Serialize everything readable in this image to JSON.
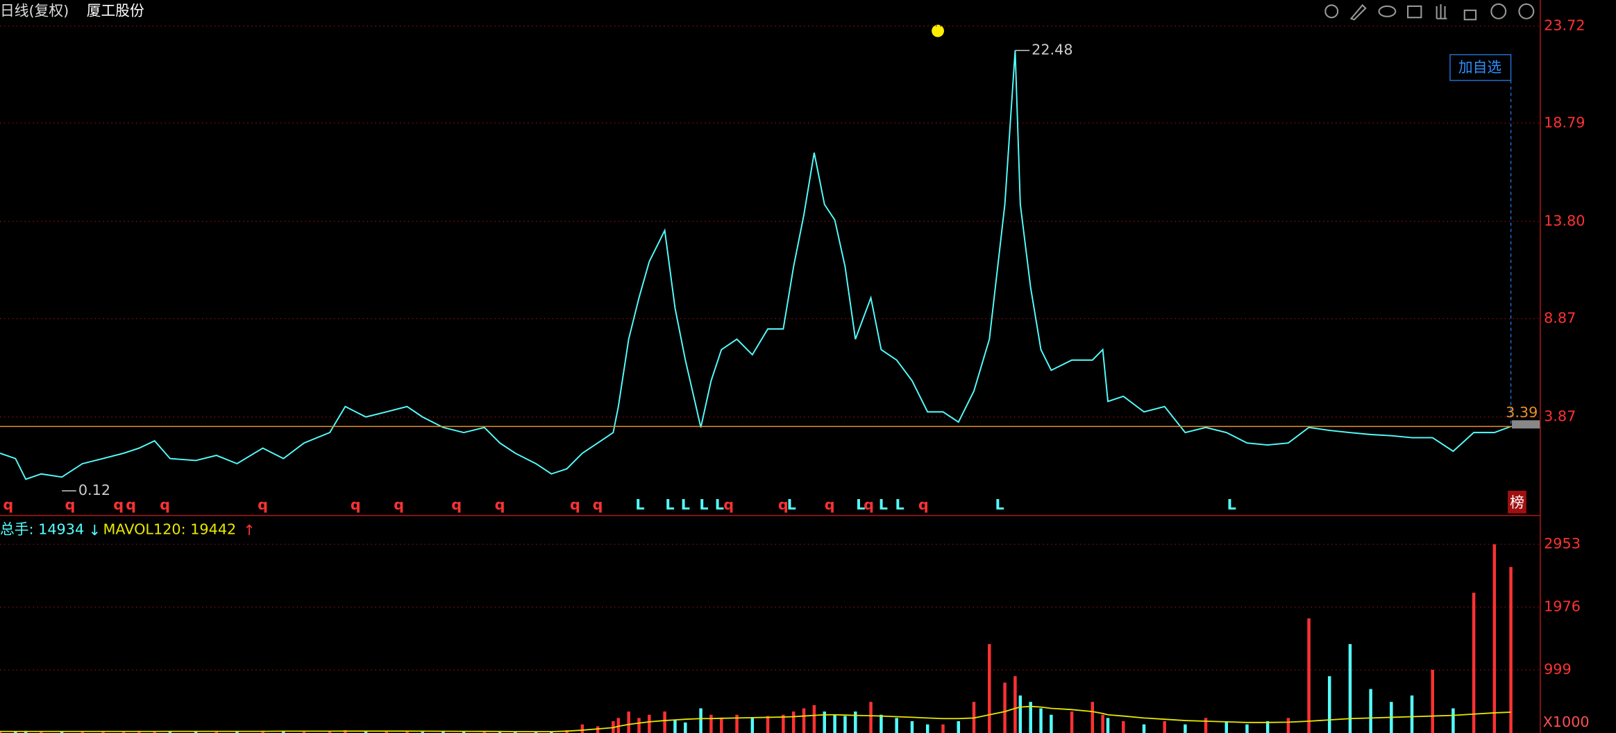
{
  "header": {
    "period": "日线(复权)",
    "stock": "厦工股份",
    "volume_label": "总手: 14934",
    "volume_arrow": "↓",
    "mavol_label": "MAVOL120: 19442",
    "mavol_arrow": "↑",
    "add_button": "加自选",
    "rank_badge": "榜",
    "unit": "X1000"
  },
  "chart_data": [
    {
      "type": "line",
      "name": "price",
      "x": [
        0,
        15,
        25,
        40,
        60,
        80,
        100,
        120,
        135,
        150,
        165,
        190,
        210,
        230,
        255,
        275,
        295,
        320,
        335,
        355,
        375,
        395,
        410,
        430,
        450,
        470,
        485,
        500,
        520,
        535,
        550,
        565,
        580,
        595,
        600,
        610,
        620,
        630,
        645,
        655,
        665,
        680,
        690,
        700,
        715,
        730,
        745,
        760,
        770,
        780,
        790,
        800,
        810,
        820,
        830,
        845,
        855,
        870,
        885,
        900,
        915,
        930,
        945,
        960,
        975,
        985,
        990,
        1000,
        1010,
        1020,
        1040,
        1060,
        1070,
        1075,
        1090,
        1110,
        1130,
        1150,
        1170,
        1190,
        1210,
        1230,
        1250,
        1270,
        1290,
        1310,
        1330,
        1350,
        1370,
        1390,
        1410,
        1430,
        1450,
        1466
      ],
      "values": [
        2.03,
        1.76,
        0.71,
        0.98,
        0.82,
        1.5,
        1.76,
        2.03,
        2.29,
        2.66,
        1.76,
        1.66,
        1.92,
        1.5,
        2.29,
        1.76,
        2.55,
        3.08,
        4.4,
        3.87,
        4.13,
        4.4,
        3.87,
        3.34,
        3.08,
        3.34,
        2.55,
        2.03,
        1.5,
        0.98,
        1.24,
        2.03,
        2.55,
        3.08,
        4.4,
        7.82,
        9.92,
        11.76,
        13.34,
        9.4,
        6.76,
        3.34,
        5.71,
        7.29,
        7.82,
        7.03,
        8.34,
        8.34,
        11.5,
        14.13,
        17.29,
        14.66,
        13.87,
        11.5,
        7.82,
        9.92,
        7.29,
        6.76,
        5.71,
        4.13,
        4.13,
        3.61,
        5.19,
        7.82,
        14.66,
        22.48,
        14.66,
        10.45,
        7.29,
        6.24,
        6.76,
        6.76,
        7.29,
        4.66,
        4.92,
        4.13,
        4.4,
        3.08,
        3.34,
        3.08,
        2.55,
        2.45,
        2.55,
        3.34,
        3.19,
        3.08,
        2.98,
        2.92,
        2.82,
        2.82,
        2.13,
        3.08,
        3.08,
        3.39
      ],
      "color": "#54ffff",
      "xlim": [
        0,
        1494
      ],
      "ylim": [
        -1.13,
        25.04
      ],
      "yticks": [
        23.72,
        18.79,
        {
          "value": 13.8,
          "label": "13.80"
        },
        8.87,
        3.87
      ],
      "grid": true,
      "current_price": 3.39,
      "current_color": "#e8902a",
      "annotations": [
        {
          "value": 22.48,
          "x": 985
        },
        {
          "value": 0.12,
          "x": 60
        }
      ],
      "signals": [
        {
          "name": "q",
          "color": "#ff3232",
          "x": [
            8,
            68,
            115,
            127,
            160,
            255,
            345,
            387,
            443,
            485,
            558,
            580,
            707,
            760,
            805,
            843,
            896
          ]
        },
        {
          "name": "L",
          "color": "#54ffff",
          "x": [
            621,
            650,
            665,
            683,
            698,
            768,
            835,
            857,
            873,
            970,
            1195
          ]
        }
      ]
    },
    {
      "type": "bar",
      "name": "volume",
      "up_color": "#ff3232",
      "down_color": "#54ffff",
      "values": [
        40,
        35,
        50,
        45,
        40,
        35,
        40,
        45,
        50,
        40,
        35,
        40,
        45,
        40,
        50,
        45,
        40,
        45,
        60,
        50,
        45,
        40,
        35,
        40,
        35,
        40,
        30,
        35,
        30,
        35,
        60,
        150,
        120,
        200,
        250,
        350,
        250,
        300,
        350,
        220,
        180,
        400,
        300,
        250,
        300,
        250,
        280,
        300,
        350,
        400,
        450,
        350,
        300,
        280,
        350,
        500,
        300,
        250,
        200,
        150,
        150,
        200,
        500,
        1400,
        800,
        900,
        600,
        500,
        400,
        300,
        350,
        500,
        300,
        250,
        200,
        150,
        200,
        150,
        250,
        200,
        150,
        200,
        250,
        1800,
        900,
        1400,
        700,
        500,
        600,
        1000,
        400,
        2200,
        2953,
        2600
      ],
      "mavol": [
        40,
        40,
        40,
        40,
        40,
        40,
        40,
        40,
        40,
        40,
        42,
        42,
        42,
        42,
        42,
        44,
        44,
        44,
        45,
        45,
        45,
        45,
        44,
        43,
        42,
        41,
        40,
        38,
        38,
        38,
        45,
        60,
        80,
        100,
        120,
        150,
        170,
        190,
        210,
        220,
        230,
        240,
        240,
        245,
        250,
        255,
        260,
        265,
        270,
        280,
        290,
        300,
        300,
        295,
        290,
        285,
        280,
        270,
        260,
        250,
        240,
        240,
        250,
        300,
        350,
        400,
        420,
        430,
        420,
        400,
        380,
        350,
        320,
        300,
        280,
        250,
        230,
        210,
        200,
        190,
        180,
        180,
        185,
        200,
        220,
        240,
        250,
        260,
        270,
        280,
        290,
        310,
        330,
        340
      ],
      "mavol_color": "#e8e800",
      "ylim": [
        0,
        3370
      ],
      "yticks": [
        2953,
        1976,
        999
      ],
      "grid": true
    }
  ]
}
